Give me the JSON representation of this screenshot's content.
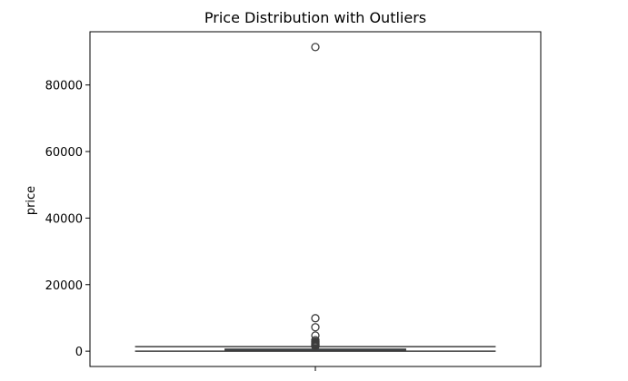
{
  "chart_data": {
    "type": "box",
    "title": "Price Distribution with Outliers",
    "xlabel": "",
    "ylabel": "price",
    "ylim": [
      -4600,
      96000
    ],
    "yticks": [
      0,
      20000,
      40000,
      60000,
      80000
    ],
    "ytick_labels": [
      "0",
      "20000",
      "40000",
      "60000",
      "80000"
    ],
    "grid": false,
    "series": [
      {
        "q1": 100,
        "median": 200,
        "q3": 600,
        "whisker_low": 0,
        "whisker_high": 1350,
        "outliers": [
          91400,
          9900,
          7200,
          4700,
          3300,
          2900,
          2600,
          2300,
          2100,
          1900,
          1700,
          1500
        ]
      }
    ],
    "colors": {
      "box_face": "#3b75af",
      "box_edge": "#3d3d3d",
      "axes": "#000000"
    }
  }
}
